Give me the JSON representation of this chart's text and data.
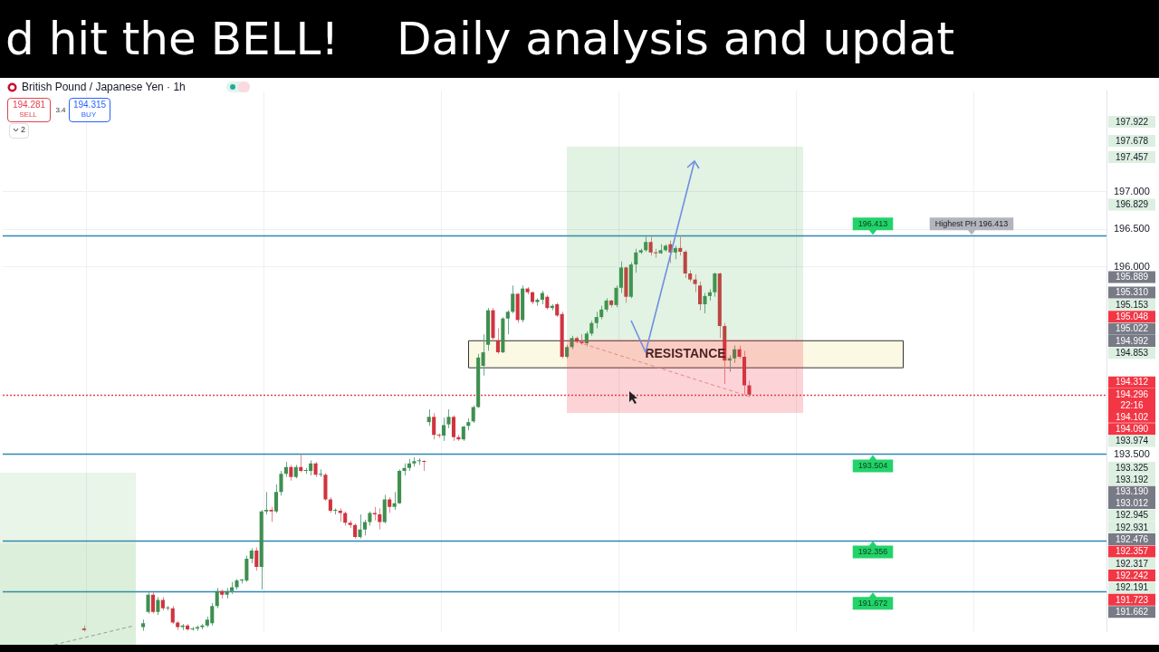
{
  "chart_data": {
    "type": "candlestick",
    "title": "d hit the BELL!    Daily analysis and updat",
    "subtitle": "British Pound / Japanese Yen · 1h",
    "categories": [
      null,
      null,
      null,
      null,
      null,
      null,
      null,
      null,
      null,
      null,
      null,
      null,
      null,
      null,
      null,
      null,
      null,
      null,
      null,
      null,
      null,
      null,
      null,
      null,
      null,
      null,
      null,
      null,
      null,
      null,
      null,
      null,
      null,
      null,
      null,
      null,
      null,
      null,
      null,
      null,
      null,
      null,
      null,
      null,
      null,
      null,
      null,
      null,
      null,
      null,
      null,
      null,
      null,
      null,
      null,
      null,
      null,
      null,
      null,
      null,
      null,
      null,
      null,
      null,
      null,
      null,
      null,
      null,
      null,
      null,
      null,
      null,
      null,
      null,
      null,
      null,
      null,
      null,
      null,
      null,
      null,
      null,
      null,
      null,
      null,
      null,
      null,
      null,
      null,
      null,
      null,
      null,
      null,
      null,
      null,
      null,
      null,
      null,
      null,
      null,
      null,
      null,
      null,
      null,
      null,
      null,
      null,
      null,
      null,
      null,
      null,
      null,
      null,
      null,
      null,
      null,
      null,
      null,
      null,
      null,
      null,
      null,
      null,
      null,
      null,
      null,
      null,
      null,
      null,
      null,
      null,
      null,
      null,
      null,
      null,
      null,
      null,
      null,
      null,
      null,
      null,
      null,
      null,
      null,
      null,
      null,
      null,
      null,
      null,
      null,
      null,
      null,
      null,
      null,
      null,
      null,
      null,
      null,
      null,
      null,
      null,
      null,
      null,
      null,
      null,
      null,
      null,
      null,
      null,
      null,
      null,
      null,
      null,
      null,
      null,
      null,
      null,
      null,
      null,
      null,
      null,
      null,
      null,
      null,
      null,
      null,
      null,
      null,
      null,
      null,
      null,
      null,
      null,
      null,
      null,
      null,
      null,
      null,
      null,
      null,
      null,
      null,
      null,
      null,
      null,
      null,
      null,
      null,
      null,
      null,
      null,
      null,
      null,
      null,
      null,
      null,
      null,
      null,
      null,
      null,
      null,
      null,
      null,
      null
    ],
    "ohlc": [
      null,
      null,
      null,
      null,
      null,
      null,
      null,
      null,
      null,
      null,
      null,
      null,
      null,
      null,
      null,
      null,
      [
        191.18,
        191.22,
        191.14,
        191.16
      ],
      null,
      null,
      null,
      null,
      null,
      null,
      null,
      null,
      null,
      null,
      null,
      [
        191.2,
        191.3,
        191.15,
        191.25
      ],
      [
        191.4,
        191.66,
        191.38,
        191.63
      ],
      [
        191.63,
        191.66,
        191.38,
        191.4
      ],
      [
        191.4,
        191.6,
        191.36,
        191.56
      ],
      [
        191.56,
        191.6,
        191.42,
        191.45
      ],
      [
        191.45,
        191.48,
        191.42,
        191.45
      ],
      [
        191.45,
        191.48,
        191.24,
        191.26
      ],
      [
        191.26,
        191.28,
        191.16,
        191.2
      ],
      [
        191.2,
        191.24,
        191.16,
        191.22
      ],
      [
        191.22,
        191.24,
        191.15,
        191.17
      ],
      [
        191.17,
        191.2,
        191.15,
        191.18
      ],
      [
        191.18,
        191.22,
        191.15,
        191.2
      ],
      [
        191.2,
        191.24,
        191.17,
        191.22
      ],
      [
        191.22,
        191.34,
        191.2,
        191.3
      ],
      [
        191.25,
        191.52,
        191.22,
        191.48
      ],
      [
        191.48,
        191.72,
        191.45,
        191.68
      ],
      [
        191.68,
        191.7,
        191.58,
        191.63
      ],
      [
        191.63,
        191.72,
        191.58,
        191.68
      ],
      [
        191.68,
        191.8,
        191.64,
        191.73
      ],
      [
        191.73,
        191.84,
        191.7,
        191.82
      ],
      [
        191.82,
        191.84,
        191.78,
        191.82
      ],
      [
        191.82,
        192.15,
        191.8,
        192.11
      ],
      [
        192.11,
        192.25,
        192.05,
        192.22
      ],
      [
        192.22,
        192.26,
        191.95,
        192.0
      ],
      [
        192.0,
        192.76,
        191.7,
        192.74
      ],
      [
        192.74,
        193.0,
        192.7,
        192.76
      ],
      [
        192.76,
        192.8,
        192.6,
        192.74
      ],
      [
        192.74,
        193.1,
        192.72,
        193.0
      ],
      [
        193.0,
        193.28,
        192.95,
        193.24
      ],
      [
        193.24,
        193.4,
        193.2,
        193.33
      ],
      [
        193.33,
        193.36,
        193.15,
        193.2
      ],
      [
        193.2,
        193.36,
        193.18,
        193.33
      ],
      [
        193.33,
        193.5,
        193.26,
        193.28
      ],
      [
        193.28,
        193.32,
        193.24,
        193.28
      ],
      [
        193.28,
        193.42,
        193.22,
        193.38
      ],
      [
        193.38,
        193.4,
        193.2,
        193.23
      ],
      [
        193.23,
        193.3,
        193.2,
        193.23
      ],
      [
        193.23,
        193.25,
        192.88,
        192.9
      ],
      [
        192.9,
        192.93,
        192.72,
        192.75
      ],
      [
        192.75,
        192.78,
        192.7,
        192.75
      ],
      [
        192.75,
        192.78,
        192.6,
        192.72
      ],
      [
        192.72,
        192.74,
        192.55,
        192.59
      ],
      [
        192.59,
        192.62,
        192.52,
        192.56
      ],
      [
        192.56,
        192.58,
        192.38,
        192.4
      ],
      [
        192.4,
        192.7,
        192.38,
        192.5
      ],
      [
        192.5,
        192.63,
        192.42,
        192.6
      ],
      [
        192.6,
        192.74,
        192.55,
        192.72
      ],
      [
        192.72,
        192.8,
        192.62,
        192.7
      ],
      [
        192.7,
        192.78,
        192.5,
        192.6
      ],
      [
        192.6,
        192.96,
        192.58,
        192.9
      ],
      [
        192.9,
        192.93,
        192.72,
        192.8
      ],
      [
        192.8,
        193.0,
        192.76,
        192.85
      ],
      [
        192.85,
        193.3,
        192.84,
        193.28
      ],
      [
        193.28,
        193.38,
        193.22,
        193.32
      ],
      [
        193.32,
        193.44,
        193.28,
        193.38
      ],
      [
        193.38,
        193.46,
        193.34,
        193.41
      ],
      [
        193.41,
        193.45,
        193.36,
        193.41
      ],
      [
        193.41,
        193.42,
        193.28,
        193.4
      ],
      [
        193.93,
        194.1,
        193.88,
        194.0
      ],
      [
        194.0,
        194.05,
        193.7,
        193.76
      ],
      [
        193.76,
        193.78,
        193.72,
        193.75
      ],
      [
        193.75,
        193.99,
        193.68,
        193.89
      ],
      [
        193.9,
        194.1,
        193.85,
        194.0
      ],
      [
        194.0,
        194.02,
        193.68,
        193.73
      ],
      [
        193.73,
        193.76,
        193.68,
        193.7
      ],
      [
        193.7,
        193.88,
        193.68,
        193.87
      ],
      [
        193.88,
        193.98,
        193.82,
        193.93
      ],
      [
        193.94,
        194.15,
        193.92,
        194.13
      ],
      [
        194.13,
        194.84,
        194.12,
        194.79
      ],
      [
        194.68,
        195.1,
        194.55,
        194.86
      ],
      [
        194.96,
        195.45,
        194.88,
        195.42
      ],
      [
        195.42,
        195.45,
        195.0,
        195.05
      ],
      [
        195.02,
        195.18,
        194.84,
        194.86
      ],
      [
        194.86,
        195.33,
        194.85,
        195.31
      ],
      [
        195.31,
        195.42,
        195.1,
        195.4
      ],
      [
        195.4,
        195.75,
        195.38,
        195.64
      ],
      [
        195.64,
        195.65,
        195.25,
        195.29
      ],
      [
        195.29,
        195.75,
        195.26,
        195.71
      ],
      [
        195.71,
        195.73,
        195.63,
        195.66
      ],
      [
        195.66,
        195.67,
        195.5,
        195.53
      ],
      [
        195.53,
        195.58,
        195.48,
        195.56
      ],
      [
        195.56,
        195.68,
        195.5,
        195.65
      ],
      [
        195.6,
        195.62,
        195.43,
        195.45
      ],
      [
        195.45,
        195.5,
        195.42,
        195.48
      ],
      [
        195.5,
        195.52,
        195.33,
        195.35
      ],
      [
        195.37,
        195.4,
        194.78,
        194.8
      ],
      [
        194.8,
        194.96,
        194.78,
        194.93
      ],
      [
        194.93,
        195.08,
        194.9,
        195.05
      ],
      [
        195.05,
        195.07,
        194.98,
        195.0
      ],
      [
        195.0,
        195.1,
        194.96,
        194.98
      ],
      [
        194.98,
        195.14,
        194.94,
        195.11
      ],
      [
        195.11,
        195.28,
        195.08,
        195.25
      ],
      [
        195.25,
        195.4,
        195.18,
        195.33
      ],
      [
        195.33,
        195.48,
        195.3,
        195.43
      ],
      [
        195.43,
        195.58,
        195.4,
        195.55
      ],
      [
        195.55,
        195.56,
        195.46,
        195.49
      ],
      [
        195.49,
        195.75,
        195.46,
        195.72
      ],
      [
        195.72,
        196.07,
        195.65,
        195.99
      ],
      [
        195.99,
        196.0,
        195.52,
        195.6
      ],
      [
        195.6,
        196.06,
        195.58,
        196.03
      ],
      [
        196.03,
        196.24,
        195.92,
        196.19
      ],
      [
        196.19,
        196.24,
        196.17,
        196.22
      ],
      [
        196.22,
        196.4,
        196.2,
        196.33
      ],
      [
        196.33,
        196.4,
        196.15,
        196.19
      ],
      [
        196.19,
        196.24,
        196.12,
        196.18
      ],
      [
        196.18,
        196.3,
        196.17,
        196.22
      ],
      [
        196.22,
        196.3,
        196.2,
        196.28
      ],
      [
        196.3,
        196.35,
        196.05,
        196.19
      ],
      [
        196.19,
        196.28,
        196.1,
        196.25
      ],
      [
        196.25,
        196.413,
        196.15,
        196.2
      ],
      [
        196.2,
        196.22,
        195.85,
        195.91
      ],
      [
        195.91,
        195.95,
        195.8,
        195.83
      ],
      [
        195.83,
        195.9,
        195.66,
        195.77
      ],
      [
        195.75,
        195.8,
        195.42,
        195.5
      ],
      [
        195.5,
        195.65,
        195.38,
        195.61
      ],
      [
        195.61,
        195.7,
        195.55,
        195.66
      ],
      [
        195.66,
        195.92,
        195.6,
        195.91
      ],
      [
        195.91,
        195.92,
        195.05,
        195.21
      ],
      [
        195.21,
        195.25,
        194.44,
        194.75
      ],
      [
        194.75,
        194.82,
        194.6,
        194.78
      ],
      [
        194.78,
        194.95,
        194.72,
        194.9
      ],
      [
        194.9,
        194.95,
        194.78,
        194.8
      ],
      [
        194.8,
        194.88,
        194.3,
        194.42
      ],
      [
        194.42,
        194.48,
        194.28,
        194.296
      ],
      null,
      null,
      null,
      null,
      null,
      null,
      null,
      null,
      null,
      null,
      null,
      null,
      null,
      null,
      null,
      null,
      null,
      null,
      null,
      null,
      null,
      null,
      null,
      null,
      null,
      null,
      null,
      null,
      null,
      null,
      null,
      null,
      null,
      null,
      null,
      null,
      null,
      null,
      null,
      null,
      null,
      null,
      null,
      null,
      null,
      null,
      null,
      null,
      null,
      null,
      null,
      null,
      null,
      null,
      null,
      null,
      null,
      null,
      null,
      null,
      null,
      null,
      null,
      null,
      null,
      null,
      null,
      null,
      null,
      null,
      null,
      null
    ],
    "ylim": [
      191.14,
      198.34
    ],
    "yticks": [
      {
        "value": 193.5,
        "label": "193.500"
      },
      {
        "value": 196,
        "label": "196.000"
      },
      {
        "value": 196.5,
        "label": "196.500"
      },
      {
        "value": 197,
        "label": "197.000"
      }
    ],
    "tick_labels": "y",
    "grid": true,
    "ref_lines": [
      {
        "axis": "y",
        "value": 196.413,
        "label": "196.413",
        "color": "#2f86b3"
      },
      {
        "axis": "y",
        "value": 193.504,
        "label": "193.504",
        "color": "#2f86b3"
      },
      {
        "axis": "y",
        "value": 192.356,
        "label": "192.356",
        "color": "#2f86b3"
      },
      {
        "axis": "y",
        "value": 191.672,
        "label": "191.672",
        "color": "#2f86b3"
      },
      {
        "axis": "y",
        "value": 194.296,
        "color": "#e0434f",
        "line_style": "dotted"
      }
    ],
    "bands": [
      {
        "axis": "y",
        "from": 194.66,
        "to": 195.02,
        "label": "RESISTANCE",
        "color": "#fbf8e4"
      }
    ],
    "annotations": [
      "194.281",
      "SELL",
      "3.4",
      "194.315",
      "BUY",
      "2",
      "197.922",
      "197.678",
      "197.457",
      "196.829",
      "195.889",
      "195.310",
      "195.153",
      "195.048",
      "195.022",
      "194.992",
      "194.853",
      "194.312",
      "194.296",
      "22:16",
      "194.102",
      "194.090",
      "193.974",
      "193.325",
      "193.192",
      "193.190",
      "193.012",
      "192.945",
      "192.931",
      "192.476",
      "192.357",
      "192.317",
      "192.242",
      "192.191",
      "191.723",
      "191.662",
      {
        "text": "Highest PH 196.413",
        "y": 196.413
      }
    ]
  }
}
